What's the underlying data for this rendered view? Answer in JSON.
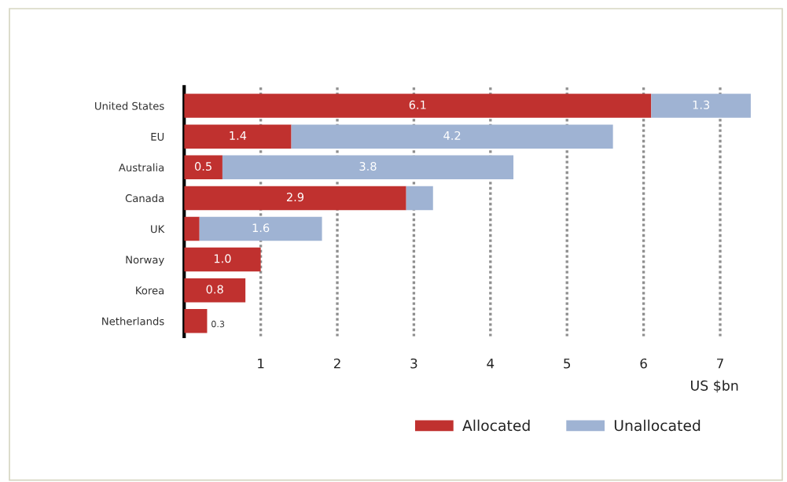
{
  "chart_data": {
    "type": "bar",
    "orientation": "horizontal",
    "stacked": true,
    "categories": [
      "United States",
      "EU",
      "Australia",
      "Canada",
      "UK",
      "Norway",
      "Korea",
      "Netherlands"
    ],
    "series": [
      {
        "name": "Allocated",
        "color": "#c0312f",
        "values": [
          6.1,
          1.4,
          0.5,
          2.9,
          0.2,
          1.0,
          0.8,
          0.3
        ],
        "value_labels": [
          "6.1",
          "1.4",
          "0.5",
          "2.9",
          null,
          "1.0",
          "0.8",
          "0.3"
        ]
      },
      {
        "name": "Unallocated",
        "color": "#9fb3d3",
        "values": [
          1.3,
          4.2,
          3.8,
          0.35,
          1.6,
          null,
          null,
          null
        ],
        "value_labels": [
          "1.3",
          "4.2",
          "3.8",
          null,
          "1.6",
          null,
          null,
          null
        ]
      }
    ],
    "xlabel": "US $bn",
    "xlim": [
      0,
      7.4
    ],
    "xticks": [
      1,
      2,
      3,
      4,
      5,
      6,
      7
    ],
    "grid": "x",
    "legend": "bottom"
  }
}
